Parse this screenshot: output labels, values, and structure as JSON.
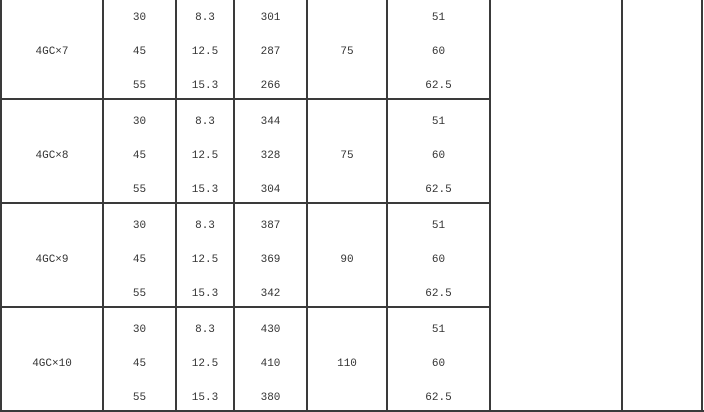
{
  "groups": [
    {
      "model": "4GC×7",
      "col2": [
        "30",
        "45",
        "55"
      ],
      "col3": [
        "8.3",
        "12.5",
        "15.3"
      ],
      "col4": [
        "301",
        "287",
        "266"
      ],
      "col5": "75",
      "col6": [
        "51",
        "60",
        "62.5"
      ]
    },
    {
      "model": "4GC×8",
      "col2": [
        "30",
        "45",
        "55"
      ],
      "col3": [
        "8.3",
        "12.5",
        "15.3"
      ],
      "col4": [
        "344",
        "328",
        "304"
      ],
      "col5": "75",
      "col6": [
        "51",
        "60",
        "62.5"
      ]
    },
    {
      "model": "4GC×9",
      "col2": [
        "30",
        "45",
        "55"
      ],
      "col3": [
        "8.3",
        "12.5",
        "15.3"
      ],
      "col4": [
        "387",
        "369",
        "342"
      ],
      "col5": "90",
      "col6": [
        "51",
        "60",
        "62.5"
      ]
    },
    {
      "model": "4GC×10",
      "col2": [
        "30",
        "45",
        "55"
      ],
      "col3": [
        "8.3",
        "12.5",
        "15.3"
      ],
      "col4": [
        "430",
        "410",
        "380"
      ],
      "col5": "110",
      "col6": [
        "51",
        "60",
        "62.5"
      ]
    }
  ]
}
